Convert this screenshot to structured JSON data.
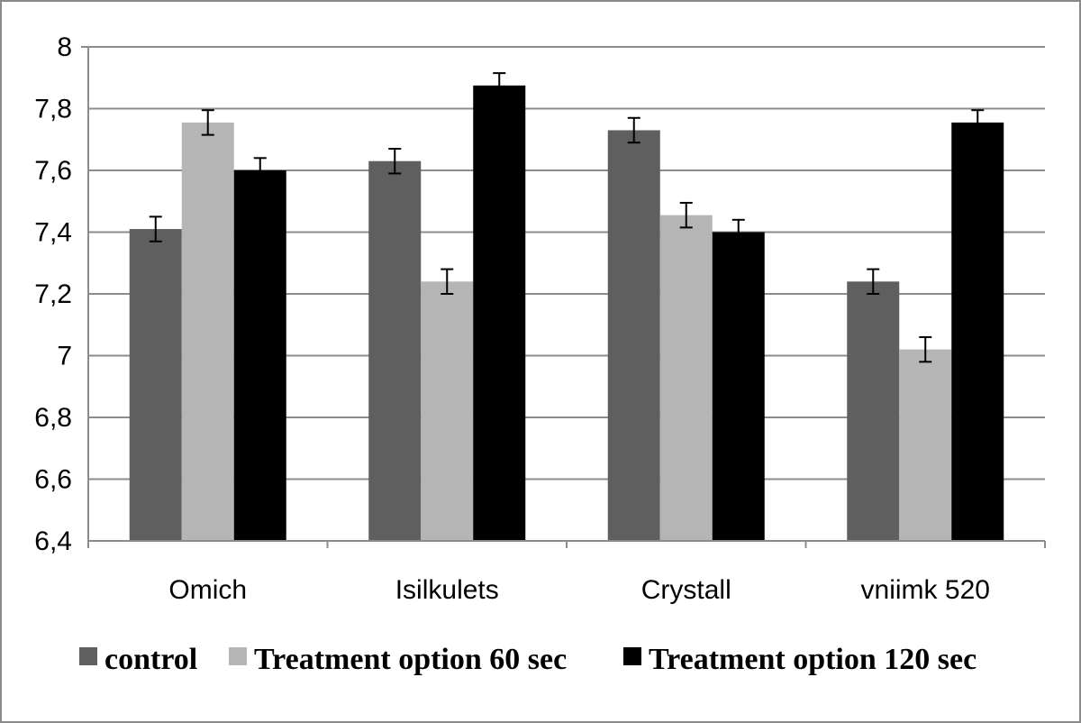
{
  "chart_data": {
    "type": "bar",
    "title": "",
    "xlabel": "",
    "ylabel": "",
    "ylim": [
      6.4,
      8
    ],
    "yticks": [
      "8",
      "7,8",
      "7,6",
      "7,4",
      "7,2",
      "7",
      "6,8",
      "6,6",
      "6,4"
    ],
    "ytick_values": [
      8,
      7.8,
      7.6,
      7.4,
      7.2,
      7.0,
      6.8,
      6.6,
      6.4
    ],
    "grid": true,
    "legend_position": "bottom",
    "categories": [
      "Omich",
      "Isilkulets",
      "Crystall",
      "vniimk 520"
    ],
    "series": [
      {
        "name": "control",
        "color": "#5f5f5f",
        "values": [
          7.41,
          7.63,
          7.73,
          7.24
        ],
        "errors": [
          0.04,
          0.04,
          0.04,
          0.04
        ]
      },
      {
        "name": "Treatment option 60 sec",
        "color": "#b5b5b5",
        "values": [
          7.755,
          7.24,
          7.455,
          7.02
        ],
        "errors": [
          0.04,
          0.04,
          0.04,
          0.04
        ]
      },
      {
        "name": "Treatment option 120 sec",
        "color": "#000000",
        "values": [
          7.6,
          7.875,
          7.4,
          7.755
        ],
        "errors": [
          0.04,
          0.04,
          0.04,
          0.04
        ]
      }
    ]
  }
}
